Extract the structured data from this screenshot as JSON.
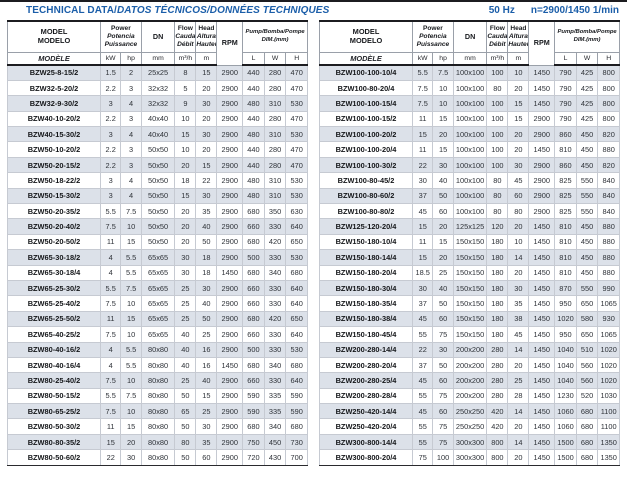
{
  "page": {
    "title_main": "TECHNICAL DATA/",
    "title_secondary": "DATOS TÉCNICOS/DONNÉES TECHNIQUES",
    "frequency": "50 Hz",
    "speed": "n=2900/1450 1/min",
    "accent_color": "#1b5ea9",
    "stripe_color": "#dce1e9"
  },
  "header": {
    "model_lines": [
      "MODEL",
      "MODELO",
      "MODÈLE"
    ],
    "power_lines": [
      "Power",
      "Potencia",
      "Puissance"
    ],
    "dn": "DN",
    "flow_lines": [
      "Flow",
      "Caudal",
      "Débit"
    ],
    "head_lines": [
      "Head",
      "Altura",
      "Hauteur"
    ],
    "rpm": "RPM",
    "pump_dim_lines": [
      "Pump/Bomba/Pompe",
      "DIM.(mm)"
    ],
    "units": {
      "kw": "kW",
      "hp": "hp",
      "mm": "mm",
      "flow": "m³/h",
      "head": "m",
      "l": "L",
      "w": "W",
      "h": "H"
    }
  },
  "tables": [
    {
      "side": "left",
      "rows": [
        [
          "BZW25-8-15/2",
          "1.5",
          "2",
          "25x25",
          "8",
          "15",
          "2900",
          "440",
          "280",
          "470"
        ],
        [
          "BZW32-5-20/2",
          "2.2",
          "3",
          "32x32",
          "5",
          "20",
          "2900",
          "440",
          "280",
          "470"
        ],
        [
          "BZW32-9-30/2",
          "3",
          "4",
          "32x32",
          "9",
          "30",
          "2900",
          "480",
          "310",
          "530"
        ],
        [
          "BZW40-10-20/2",
          "2.2",
          "3",
          "40x40",
          "10",
          "20",
          "2900",
          "440",
          "280",
          "470"
        ],
        [
          "BZW40-15-30/2",
          "3",
          "4",
          "40x40",
          "15",
          "30",
          "2900",
          "480",
          "310",
          "530"
        ],
        [
          "BZW50-10-20/2",
          "2.2",
          "3",
          "50x50",
          "10",
          "20",
          "2900",
          "440",
          "280",
          "470"
        ],
        [
          "BZW50-20-15/2",
          "2.2",
          "3",
          "50x50",
          "20",
          "15",
          "2900",
          "440",
          "280",
          "470"
        ],
        [
          "BZW50-18-22/2",
          "3",
          "4",
          "50x50",
          "18",
          "22",
          "2900",
          "480",
          "310",
          "530"
        ],
        [
          "BZW50-15-30/2",
          "3",
          "4",
          "50x50",
          "15",
          "30",
          "2900",
          "480",
          "310",
          "530"
        ],
        [
          "BZW50-20-35/2",
          "5.5",
          "7.5",
          "50x50",
          "20",
          "35",
          "2900",
          "680",
          "350",
          "630"
        ],
        [
          "BZW50-20-40/2",
          "7.5",
          "10",
          "50x50",
          "20",
          "40",
          "2900",
          "660",
          "330",
          "640"
        ],
        [
          "BZW50-20-50/2",
          "11",
          "15",
          "50x50",
          "20",
          "50",
          "2900",
          "680",
          "420",
          "650"
        ],
        [
          "BZW65-30-18/2",
          "4",
          "5.5",
          "65x65",
          "30",
          "18",
          "2900",
          "500",
          "330",
          "530"
        ],
        [
          "BZW65-30-18/4",
          "4",
          "5.5",
          "65x65",
          "30",
          "18",
          "1450",
          "680",
          "340",
          "680"
        ],
        [
          "BZW65-25-30/2",
          "5.5",
          "7.5",
          "65x65",
          "25",
          "30",
          "2900",
          "660",
          "330",
          "640"
        ],
        [
          "BZW65-25-40/2",
          "7.5",
          "10",
          "65x65",
          "25",
          "40",
          "2900",
          "660",
          "330",
          "640"
        ],
        [
          "BZW65-25-50/2",
          "11",
          "15",
          "65x65",
          "25",
          "50",
          "2900",
          "680",
          "420",
          "650"
        ],
        [
          "BZW65-40-25/2",
          "7.5",
          "10",
          "65x65",
          "40",
          "25",
          "2900",
          "660",
          "330",
          "640"
        ],
        [
          "BZW80-40-16/2",
          "4",
          "5.5",
          "80x80",
          "40",
          "16",
          "2900",
          "500",
          "330",
          "530"
        ],
        [
          "BZW80-40-16/4",
          "4",
          "5.5",
          "80x80",
          "40",
          "16",
          "1450",
          "680",
          "340",
          "680"
        ],
        [
          "BZW80-25-40/2",
          "7.5",
          "10",
          "80x80",
          "25",
          "40",
          "2900",
          "660",
          "330",
          "640"
        ],
        [
          "BZW80-50-15/2",
          "5.5",
          "7.5",
          "80x80",
          "50",
          "15",
          "2900",
          "590",
          "335",
          "590"
        ],
        [
          "BZW80-65-25/2",
          "7.5",
          "10",
          "80x80",
          "65",
          "25",
          "2900",
          "590",
          "335",
          "590"
        ],
        [
          "BZW80-50-30/2",
          "11",
          "15",
          "80x80",
          "50",
          "30",
          "2900",
          "680",
          "340",
          "680"
        ],
        [
          "BZW80-80-35/2",
          "15",
          "20",
          "80x80",
          "80",
          "35",
          "2900",
          "750",
          "450",
          "730"
        ],
        [
          "BZW80-50-60/2",
          "22",
          "30",
          "80x80",
          "50",
          "60",
          "2900",
          "720",
          "430",
          "700"
        ]
      ]
    },
    {
      "side": "right",
      "rows": [
        [
          "BZW100-100-10/4",
          "5.5",
          "7.5",
          "100x100",
          "100",
          "10",
          "1450",
          "790",
          "425",
          "800"
        ],
        [
          "BZW100-80-20/4",
          "7.5",
          "10",
          "100x100",
          "80",
          "20",
          "1450",
          "790",
          "425",
          "800"
        ],
        [
          "BZW100-100-15/4",
          "7.5",
          "10",
          "100x100",
          "100",
          "15",
          "1450",
          "790",
          "425",
          "800"
        ],
        [
          "BZW100-100-15/2",
          "11",
          "15",
          "100x100",
          "100",
          "15",
          "2900",
          "790",
          "425",
          "800"
        ],
        [
          "BZW100-100-20/2",
          "15",
          "20",
          "100x100",
          "100",
          "20",
          "2900",
          "860",
          "450",
          "820"
        ],
        [
          "BZW100-100-20/4",
          "11",
          "15",
          "100x100",
          "100",
          "20",
          "1450",
          "810",
          "450",
          "880"
        ],
        [
          "BZW100-100-30/2",
          "22",
          "30",
          "100x100",
          "100",
          "30",
          "2900",
          "860",
          "450",
          "820"
        ],
        [
          "BZW100-80-45/2",
          "30",
          "40",
          "100x100",
          "80",
          "45",
          "2900",
          "825",
          "550",
          "840"
        ],
        [
          "BZW100-80-60/2",
          "37",
          "50",
          "100x100",
          "80",
          "60",
          "2900",
          "825",
          "550",
          "840"
        ],
        [
          "BZW100-80-80/2",
          "45",
          "60",
          "100x100",
          "80",
          "80",
          "2900",
          "825",
          "550",
          "840"
        ],
        [
          "BZW125-120-20/4",
          "15",
          "20",
          "125x125",
          "120",
          "20",
          "1450",
          "810",
          "450",
          "880"
        ],
        [
          "BZW150-180-10/4",
          "11",
          "15",
          "150x150",
          "180",
          "10",
          "1450",
          "810",
          "450",
          "880"
        ],
        [
          "BZW150-180-14/4",
          "15",
          "20",
          "150x150",
          "180",
          "14",
          "1450",
          "810",
          "450",
          "880"
        ],
        [
          "BZW150-180-20/4",
          "18.5",
          "25",
          "150x150",
          "180",
          "20",
          "1450",
          "810",
          "450",
          "880"
        ],
        [
          "BZW150-180-30/4",
          "30",
          "40",
          "150x150",
          "180",
          "30",
          "1450",
          "870",
          "550",
          "990"
        ],
        [
          "BZW150-180-35/4",
          "37",
          "50",
          "150x150",
          "180",
          "35",
          "1450",
          "950",
          "650",
          "1065"
        ],
        [
          "BZW150-180-38/4",
          "45",
          "60",
          "150x150",
          "180",
          "38",
          "1450",
          "1020",
          "580",
          "930"
        ],
        [
          "BZW150-180-45/4",
          "55",
          "75",
          "150x150",
          "180",
          "45",
          "1450",
          "950",
          "650",
          "1065"
        ],
        [
          "BZW200-280-14/4",
          "22",
          "30",
          "200x200",
          "280",
          "14",
          "1450",
          "1040",
          "510",
          "1020"
        ],
        [
          "BZW200-280-20/4",
          "37",
          "50",
          "200x200",
          "280",
          "20",
          "1450",
          "1040",
          "560",
          "1020"
        ],
        [
          "BZW200-280-25/4",
          "45",
          "60",
          "200x200",
          "280",
          "25",
          "1450",
          "1040",
          "560",
          "1020"
        ],
        [
          "BZW200-280-28/4",
          "55",
          "75",
          "200x200",
          "280",
          "28",
          "1450",
          "1230",
          "520",
          "1030"
        ],
        [
          "BZW250-420-14/4",
          "45",
          "60",
          "250x250",
          "420",
          "14",
          "1450",
          "1060",
          "680",
          "1100"
        ],
        [
          "BZW250-420-20/4",
          "55",
          "75",
          "250x250",
          "420",
          "20",
          "1450",
          "1060",
          "680",
          "1100"
        ],
        [
          "BZW300-800-14/4",
          "55",
          "75",
          "300x300",
          "800",
          "14",
          "1450",
          "1500",
          "680",
          "1350"
        ],
        [
          "BZW300-800-20/4",
          "75",
          "100",
          "300x300",
          "800",
          "20",
          "1450",
          "1500",
          "680",
          "1350"
        ]
      ]
    }
  ]
}
